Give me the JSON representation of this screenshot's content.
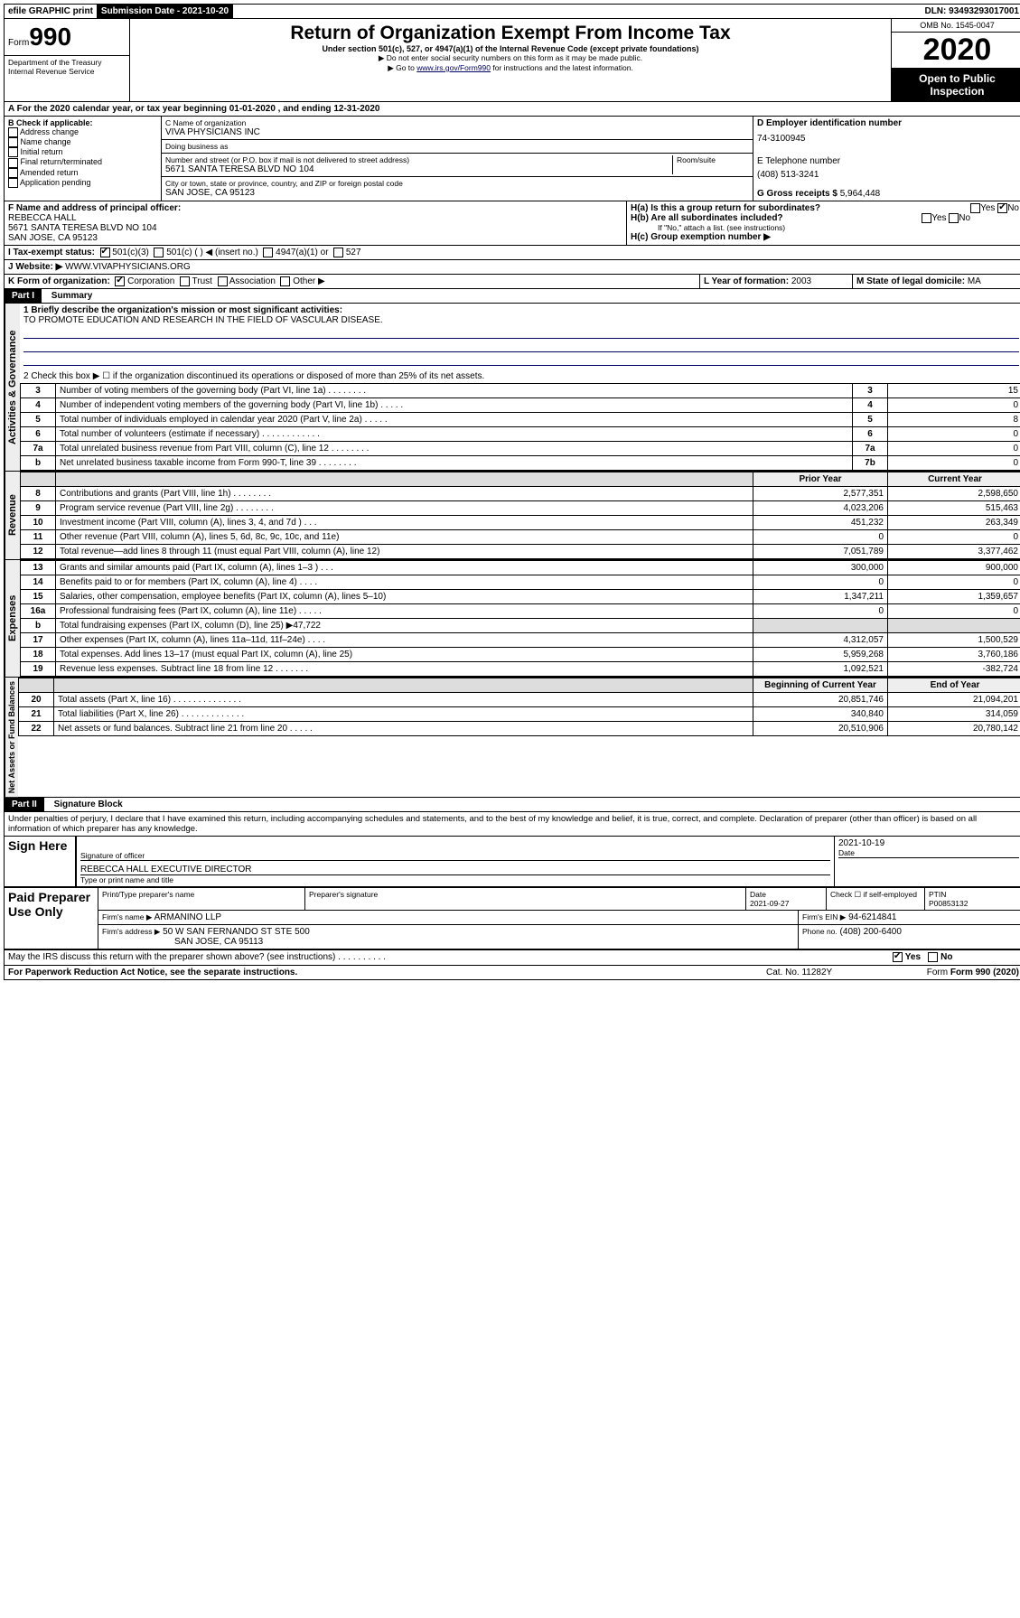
{
  "header": {
    "efile": "efile GRAPHIC print",
    "submission_label": "Submission Date - 2021-10-20",
    "dln": "DLN: 93493293017001"
  },
  "form": {
    "form_label": "Form",
    "form_number": "990",
    "dept1": "Department of the Treasury",
    "dept2": "Internal Revenue Service",
    "title": "Return of Organization Exempt From Income Tax",
    "subtitle": "Under section 501(c), 527, or 4947(a)(1) of the Internal Revenue Code (except private foundations)",
    "note1": "▶ Do not enter social security numbers on this form as it may be made public.",
    "note2_pre": "▶ Go to ",
    "note2_link": "www.irs.gov/Form990",
    "note2_post": " for instructions and the latest information.",
    "omb": "OMB No. 1545-0047",
    "year": "2020",
    "open": "Open to Public Inspection"
  },
  "row_a": "A   For the 2020 calendar year, or tax year beginning 01-01-2020     , and ending 12-31-2020",
  "box_b": {
    "header": "B Check if applicable:",
    "items": [
      "Address change",
      "Name change",
      "Initial return",
      "Final return/terminated",
      "Amended return",
      "Application pending"
    ]
  },
  "box_c": {
    "name_label": "C Name of organization",
    "name": "VIVA PHYSICIANS INC",
    "dba_label": "Doing business as",
    "dba": "",
    "addr_label": "Number and street (or P.O. box if mail is not delivered to street address)",
    "room_label": "Room/suite",
    "addr": "5671 SANTA TERESA BLVD NO 104",
    "city_label": "City or town, state or province, country, and ZIP or foreign postal code",
    "city": "SAN JOSE, CA  95123"
  },
  "box_d": {
    "label": "D Employer identification number",
    "val": "74-3100945",
    "e_label": "E Telephone number",
    "e_val": "(408) 513-3241",
    "g_label": "G Gross receipts $",
    "g_val": "5,964,448"
  },
  "box_f": {
    "label": "F  Name and address of principal officer:",
    "name": "REBECCA HALL",
    "addr1": "5671 SANTA TERESA BLVD NO 104",
    "addr2": "SAN JOSE, CA  95123"
  },
  "box_h": {
    "ha": "H(a)  Is this a group return for subordinates?",
    "hb": "H(b)  Are all subordinates included?",
    "hb_note": "If \"No,\" attach a list. (see instructions)",
    "hc": "H(c)  Group exemption number ▶",
    "yes": "Yes",
    "no": "No"
  },
  "row_i": {
    "label": "I    Tax-exempt status:",
    "opts": [
      "501(c)(3)",
      "501(c) (   ) ◀ (insert no.)",
      "4947(a)(1) or",
      "527"
    ]
  },
  "row_j": {
    "label": "J   Website: ▶",
    "val": "WWW.VIVAPHYSICIANS.ORG"
  },
  "row_k": {
    "label": "K Form of organization:",
    "opts": [
      "Corporation",
      "Trust",
      "Association",
      "Other ▶"
    ],
    "l_label": "L Year of formation:",
    "l_val": "2003",
    "m_label": "M State of legal domicile:",
    "m_val": "MA"
  },
  "part1": {
    "title": "Part I",
    "subtitle": "Summary",
    "vert_gov": "Activities & Governance",
    "vert_rev": "Revenue",
    "vert_exp": "Expenses",
    "vert_net": "Net Assets or Fund Balances",
    "line1": "1  Briefly describe the organization's mission or most significant activities:",
    "mission": "TO PROMOTE EDUCATION AND RESEARCH IN THE FIELD OF VASCULAR DISEASE.",
    "line2": "2   Check this box ▶ ☐  if the organization discontinued its operations or disposed of more than 25% of its net assets.",
    "rows_gov": [
      {
        "n": "3",
        "label": "Number of voting members of the governing body (Part VI, line 1a)  .  .  .  .  .  .  .  .",
        "box": "3",
        "val": "15"
      },
      {
        "n": "4",
        "label": "Number of independent voting members of the governing body (Part VI, line 1b)  .  .  .  .  .",
        "box": "4",
        "val": "0"
      },
      {
        "n": "5",
        "label": "Total number of individuals employed in calendar year 2020 (Part V, line 2a)  .  .  .  .  .",
        "box": "5",
        "val": "8"
      },
      {
        "n": "6",
        "label": "Total number of volunteers (estimate if necessary)  .  .  .  .  .  .  .  .  .  .  .  .",
        "box": "6",
        "val": "0"
      },
      {
        "n": "7a",
        "label": "Total unrelated business revenue from Part VIII, column (C), line 12  .  .  .  .  .  .  .  .",
        "box": "7a",
        "val": "0"
      },
      {
        "n": "b",
        "label": "Net unrelated business taxable income from Form 990-T, line 39  .  .  .  .  .  .  .  .",
        "box": "7b",
        "val": "0"
      }
    ],
    "hdr_prior": "Prior Year",
    "hdr_curr": "Current Year",
    "rows_rev": [
      {
        "n": "8",
        "label": "Contributions and grants (Part VIII, line 1h)  .  .  .  .  .  .  .  .",
        "p": "2,577,351",
        "c": "2,598,650"
      },
      {
        "n": "9",
        "label": "Program service revenue (Part VIII, line 2g)  .  .  .  .  .  .  .  .",
        "p": "4,023,206",
        "c": "515,463"
      },
      {
        "n": "10",
        "label": "Investment income (Part VIII, column (A), lines 3, 4, and 7d )  .  .  .",
        "p": "451,232",
        "c": "263,349"
      },
      {
        "n": "11",
        "label": "Other revenue (Part VIII, column (A), lines 5, 6d, 8c, 9c, 10c, and 11e)",
        "p": "0",
        "c": "0"
      },
      {
        "n": "12",
        "label": "Total revenue—add lines 8 through 11 (must equal Part VIII, column (A), line 12)",
        "p": "7,051,789",
        "c": "3,377,462"
      }
    ],
    "rows_exp": [
      {
        "n": "13",
        "label": "Grants and similar amounts paid (Part IX, column (A), lines 1–3 )  .  .  .",
        "p": "300,000",
        "c": "900,000"
      },
      {
        "n": "14",
        "label": "Benefits paid to or for members (Part IX, column (A), line 4)  .  .  .  .",
        "p": "0",
        "c": "0"
      },
      {
        "n": "15",
        "label": "Salaries, other compensation, employee benefits (Part IX, column (A), lines 5–10)",
        "p": "1,347,211",
        "c": "1,359,657"
      },
      {
        "n": "16a",
        "label": "Professional fundraising fees (Part IX, column (A), line 11e)  .  .  .  .  .",
        "p": "0",
        "c": "0"
      },
      {
        "n": "b",
        "label": "Total fundraising expenses (Part IX, column (D), line 25) ▶47,722",
        "p": "",
        "c": "",
        "grey": true
      },
      {
        "n": "17",
        "label": "Other expenses (Part IX, column (A), lines 11a–11d, 11f–24e)  .  .  .  .",
        "p": "4,312,057",
        "c": "1,500,529"
      },
      {
        "n": "18",
        "label": "Total expenses. Add lines 13–17 (must equal Part IX, column (A), line 25)",
        "p": "5,959,268",
        "c": "3,760,186"
      },
      {
        "n": "19",
        "label": "Revenue less expenses. Subtract line 18 from line 12  .  .  .  .  .  .  .",
        "p": "1,092,521",
        "c": "-382,724"
      }
    ],
    "hdr_begin": "Beginning of Current Year",
    "hdr_end": "End of Year",
    "rows_net": [
      {
        "n": "20",
        "label": "Total assets (Part X, line 16)  .  .  .  .  .  .  .  .  .  .  .  .  .  .",
        "p": "20,851,746",
        "c": "21,094,201"
      },
      {
        "n": "21",
        "label": "Total liabilities (Part X, line 26)  .  .  .  .  .  .  .  .  .  .  .  .  .",
        "p": "340,840",
        "c": "314,059"
      },
      {
        "n": "22",
        "label": "Net assets or fund balances. Subtract line 21 from line 20  .  .  .  .  .",
        "p": "20,510,906",
        "c": "20,780,142"
      }
    ]
  },
  "part2": {
    "title": "Part II",
    "subtitle": "Signature Block",
    "perjury": "Under penalties of perjury, I declare that I have examined this return, including accompanying schedules and statements, and to the best of my knowledge and belief, it is true, correct, and complete. Declaration of preparer (other than officer) is based on all information of which preparer has any knowledge.",
    "sign_here": "Sign Here",
    "sig_officer": "Signature of officer",
    "sig_date": "2021-10-19",
    "date_label": "Date",
    "officer_name": "REBECCA HALL  EXECUTIVE DIRECTOR",
    "type_name": "Type or print name and title",
    "paid": "Paid Preparer Use Only",
    "prep_name_label": "Print/Type preparer's name",
    "prep_sig_label": "Preparer's signature",
    "prep_date_label": "Date",
    "prep_date": "2021-09-27",
    "check_if": "Check ☐ if self-employed",
    "ptin_label": "PTIN",
    "ptin": "P00853132",
    "firm_name_label": "Firm's name    ▶",
    "firm_name": "ARMANINO LLP",
    "firm_ein_label": "Firm's EIN ▶",
    "firm_ein": "94-6214841",
    "firm_addr_label": "Firm's address ▶",
    "firm_addr1": "50 W SAN FERNANDO ST STE 500",
    "firm_addr2": "SAN JOSE, CA  95113",
    "phone_label": "Phone no.",
    "phone": "(408) 200-6400",
    "discuss": "May the IRS discuss this return with the preparer shown above? (see instructions)  .  .  .  .  .  .  .  .  .  .",
    "yes": "Yes",
    "no": "No"
  },
  "footer": {
    "paperwork": "For Paperwork Reduction Act Notice, see the separate instructions.",
    "cat": "Cat. No. 11282Y",
    "form": "Form 990 (2020)"
  }
}
